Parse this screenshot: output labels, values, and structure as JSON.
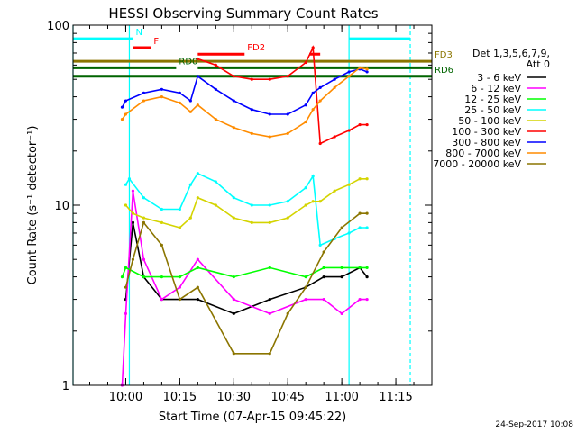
{
  "chart_data": {
    "type": "line",
    "title": "HESSI Observing Summary Count Rates",
    "xlabel": "Start Time (07-Apr-15 09:45:22)",
    "ylabel": "Count Rate (s⁻¹ detector⁻¹)",
    "yscale": "log",
    "ylim": [
      1,
      100
    ],
    "xlim": [
      "09:45:22",
      "11:25:00"
    ],
    "x_ticks": [
      "10:00",
      "10:15",
      "10:30",
      "10:45",
      "11:00",
      "11:15"
    ],
    "y_ticks": [
      "1",
      "10",
      "100"
    ],
    "legend_title": [
      "Det 1,3,5,6,7,9,",
      "Att 0"
    ],
    "legend_position": "right",
    "footer": "24-Sep-2017 10:08",
    "series": [
      {
        "name": "3 - 6 keV",
        "color": "#000000",
        "x": [
          "10:00",
          "10:02",
          "10:05",
          "10:10",
          "10:20",
          "10:30",
          "10:40",
          "10:50",
          "10:55",
          "11:00",
          "11:05",
          "11:07"
        ],
        "y": [
          3,
          8,
          4,
          3,
          3,
          2.5,
          3,
          3.5,
          4,
          4,
          4.5,
          4
        ]
      },
      {
        "name": "6 - 12 keV",
        "color": "#ff00ff",
        "x": [
          "09:59",
          "10:00",
          "10:02",
          "10:05",
          "10:10",
          "10:15",
          "10:20",
          "10:30",
          "10:40",
          "10:50",
          "10:55",
          "11:00",
          "11:05",
          "11:07"
        ],
        "y": [
          1,
          2.5,
          12,
          5,
          3,
          3.5,
          5,
          3,
          2.5,
          3,
          3,
          2.5,
          3,
          3
        ]
      },
      {
        "name": "12 - 25 keV",
        "color": "#00ff00",
        "x": [
          "09:59",
          "10:00",
          "10:05",
          "10:10",
          "10:15",
          "10:20",
          "10:30",
          "10:40",
          "10:50",
          "10:55",
          "11:00",
          "11:05",
          "11:07"
        ],
        "y": [
          4,
          4.5,
          4,
          4,
          4,
          4.5,
          4,
          4.5,
          4,
          4.5,
          4.5,
          4.5,
          4.5
        ]
      },
      {
        "name": "25 - 50 keV",
        "color": "#00ffff",
        "x": [
          "10:00",
          "10:01",
          "10:05",
          "10:10",
          "10:15",
          "10:18",
          "10:20",
          "10:25",
          "10:30",
          "10:35",
          "10:40",
          "10:45",
          "10:50",
          "10:52",
          "10:54",
          "10:58",
          "11:02",
          "11:05",
          "11:07"
        ],
        "y": [
          13,
          14,
          11,
          9.5,
          9.5,
          13,
          15,
          13.5,
          11,
          10,
          10,
          10.5,
          12.5,
          14.5,
          6,
          6.5,
          7,
          7.5,
          7.5
        ]
      },
      {
        "name": "50 - 100 keV",
        "color": "#d4d400",
        "x": [
          "10:00",
          "10:02",
          "10:05",
          "10:10",
          "10:15",
          "10:18",
          "10:20",
          "10:25",
          "10:30",
          "10:35",
          "10:40",
          "10:45",
          "10:50",
          "10:52",
          "10:54",
          "10:58",
          "11:02",
          "11:05",
          "11:07"
        ],
        "y": [
          10,
          9,
          8.5,
          8,
          7.5,
          8.5,
          11,
          10,
          8.5,
          8,
          8,
          8.5,
          10,
          10.5,
          10.5,
          12,
          13,
          14,
          14
        ]
      },
      {
        "name": "100 - 300 keV",
        "color": "#ff0000",
        "x": [
          "10:20",
          "10:25",
          "10:30",
          "10:35",
          "10:40",
          "10:45",
          "10:50",
          "10:52",
          "10:54",
          "10:58",
          "11:02",
          "11:05",
          "11:07"
        ],
        "y": [
          65,
          60,
          52,
          50,
          50,
          52,
          62,
          75,
          22,
          24,
          26,
          28,
          28
        ]
      },
      {
        "name": "300 - 800 keV",
        "color": "#0000ff",
        "x": [
          "09:59",
          "10:00",
          "10:05",
          "10:10",
          "10:15",
          "10:18",
          "10:20",
          "10:25",
          "10:30",
          "10:35",
          "10:40",
          "10:45",
          "10:50",
          "10:52",
          "10:54",
          "10:58",
          "11:02",
          "11:05",
          "11:07"
        ],
        "y": [
          35,
          38,
          42,
          44,
          42,
          38,
          52,
          44,
          38,
          34,
          32,
          32,
          36,
          42,
          45,
          50,
          55,
          57,
          55
        ]
      },
      {
        "name": "800 - 7000 keV",
        "color": "#ff8c00",
        "x": [
          "09:59",
          "10:00",
          "10:05",
          "10:10",
          "10:15",
          "10:18",
          "10:20",
          "10:25",
          "10:30",
          "10:35",
          "10:40",
          "10:45",
          "10:50",
          "10:52",
          "10:54",
          "10:58",
          "11:02",
          "11:05",
          "11:07"
        ],
        "y": [
          30,
          32,
          38,
          40,
          37,
          33,
          36,
          30,
          27,
          25,
          24,
          25,
          29,
          34,
          38,
          45,
          52,
          58,
          57
        ]
      },
      {
        "name": "7000 - 20000 keV",
        "color": "#8b7500",
        "x": [
          "10:00",
          "10:02",
          "10:05",
          "10:10",
          "10:15",
          "10:20",
          "10:30",
          "10:40",
          "10:45",
          "10:50",
          "10:55",
          "11:00",
          "11:05",
          "11:07"
        ],
        "y": [
          3.5,
          5,
          8,
          6,
          3,
          3.5,
          1.5,
          1.5,
          2.5,
          3.5,
          5.5,
          7.5,
          9,
          9
        ]
      }
    ],
    "flags": [
      {
        "label": "N",
        "color": "#00ffff",
        "segments": [
          [
            "09:45:22",
            "10:02"
          ],
          [
            "11:02",
            "11:19"
          ]
        ],
        "level": 84
      },
      {
        "label": "F",
        "color": "#ff0000",
        "segments": [
          [
            "10:02",
            "10:07"
          ]
        ],
        "level": 75
      },
      {
        "label": "FD2",
        "color": "#ff0000",
        "segments": [
          [
            "10:20",
            "10:33"
          ],
          [
            "10:51",
            "10:54"
          ]
        ],
        "level": 69
      },
      {
        "label": "FD3",
        "color": "#8b7500",
        "segments": [
          [
            "09:45:22",
            "11:25"
          ]
        ],
        "level": 63
      },
      {
        "label": "RD0",
        "color": "#006400",
        "segments": [
          [
            "09:45:22",
            "10:14"
          ],
          [
            "10:20",
            "11:25"
          ]
        ],
        "level": 58
      },
      {
        "label": "RD6",
        "color": "#006400",
        "segments": [
          [
            "09:45:22",
            "11:25"
          ]
        ],
        "level": 52
      }
    ],
    "vertical_lines": [
      {
        "time": "09:45:22",
        "color": "#00ffff",
        "style": "solid"
      },
      {
        "time": "10:01",
        "color": "#00ffff",
        "style": "solid"
      },
      {
        "time": "11:02",
        "color": "#00ffff",
        "style": "solid"
      },
      {
        "time": "11:19",
        "color": "#00ffff",
        "style": "dashed"
      }
    ]
  }
}
